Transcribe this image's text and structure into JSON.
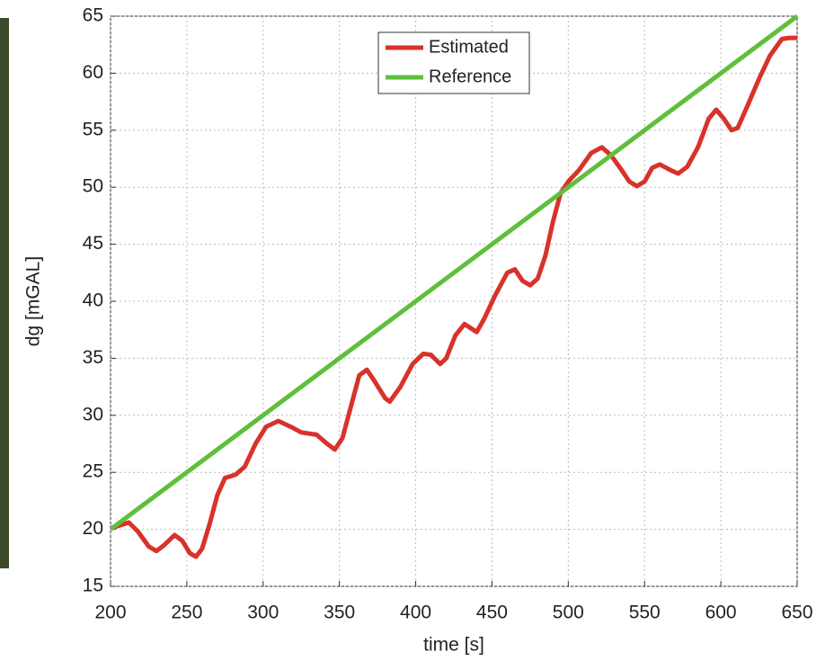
{
  "chart_data": {
    "type": "line",
    "xlabel": "time [s]",
    "ylabel": "dg [mGAL]",
    "xlim": [
      200,
      650
    ],
    "ylim": [
      15,
      65
    ],
    "xticks": [
      200,
      250,
      300,
      350,
      400,
      450,
      500,
      550,
      600,
      650
    ],
    "yticks": [
      15,
      20,
      25,
      30,
      35,
      40,
      45,
      50,
      55,
      60,
      65
    ],
    "grid": true,
    "legend": "top",
    "series": [
      {
        "name": "Estimated",
        "color": "#d8322a",
        "x": [
          200,
          205,
          212,
          218,
          225,
          230,
          235,
          242,
          247,
          252,
          256,
          260,
          265,
          270,
          275,
          282,
          288,
          295,
          302,
          310,
          318,
          325,
          335,
          342,
          347,
          352,
          358,
          363,
          368,
          373,
          380,
          383,
          390,
          398,
          405,
          410,
          416,
          420,
          426,
          432,
          440,
          445,
          452,
          460,
          465,
          470,
          475,
          480,
          485,
          490,
          495,
          500,
          507,
          515,
          522,
          528,
          535,
          540,
          545,
          550,
          555,
          560,
          567,
          572,
          578,
          585,
          592,
          597,
          602,
          607,
          611,
          617,
          625,
          632,
          640,
          645,
          650
        ],
        "values": [
          20.1,
          20.3,
          20.6,
          19.8,
          18.5,
          18.1,
          18.6,
          19.5,
          19.0,
          17.9,
          17.6,
          18.3,
          20.5,
          23,
          24.5,
          24.8,
          25.5,
          27.5,
          29,
          29.5,
          29,
          28.5,
          28.3,
          27.5,
          27,
          28,
          31,
          33.5,
          34,
          33,
          31.5,
          31.2,
          32.5,
          34.5,
          35.4,
          35.3,
          34.5,
          35,
          37,
          38,
          37.3,
          38.5,
          40.5,
          42.5,
          42.8,
          41.8,
          41.4,
          42,
          44,
          47,
          49.5,
          50.5,
          51.5,
          53,
          53.5,
          52.8,
          51.5,
          50.5,
          50.1,
          50.5,
          51.7,
          52,
          51.5,
          51.2,
          51.8,
          53.5,
          56,
          56.8,
          56,
          55,
          55.2,
          57,
          59.5,
          61.5,
          63,
          63.1,
          63.1
        ]
      },
      {
        "name": "Reference",
        "color": "#5fbf3c",
        "x": [
          200,
          650
        ],
        "values": [
          20,
          65
        ]
      }
    ]
  }
}
